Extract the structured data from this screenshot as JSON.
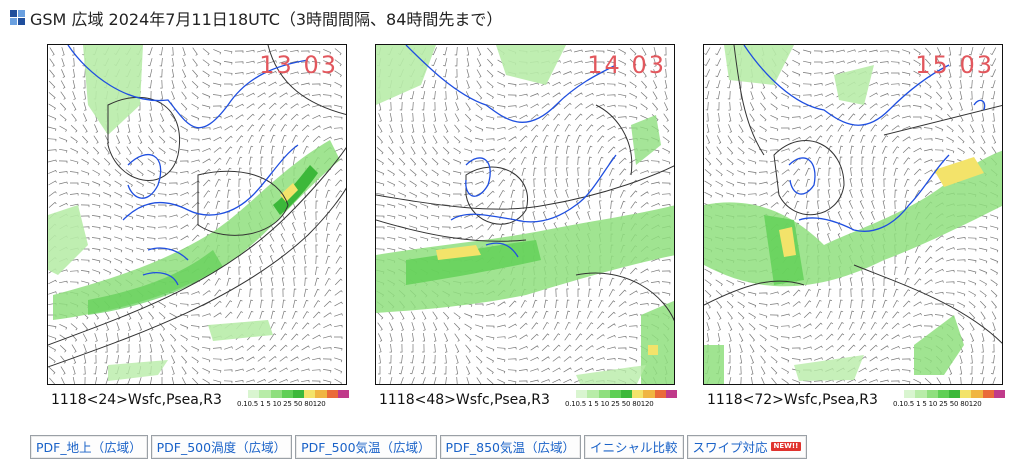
{
  "header": {
    "title": "GSM 広域 2024年7月11日18UTC（3時間間隔、84時間先まで）",
    "logo_colors": [
      "#1f4e9c",
      "#6aa0e0",
      "#6aa0e0",
      "#1f4e9c"
    ]
  },
  "panels": [
    {
      "stamp": "13 03",
      "caption": "1118<24>Wsfc,Psea,R3"
    },
    {
      "stamp": "14 03",
      "caption": "1118<48>Wsfc,Psea,R3"
    },
    {
      "stamp": "15 03",
      "caption": "1118<72>Wsfc,Psea,R3"
    }
  ],
  "legend": {
    "ticks": "0.10.5 1   5  10 25 50 80120",
    "colors": [
      "#ffffff",
      "#d9f5d0",
      "#b8eca8",
      "#8fdf7e",
      "#5fcf55",
      "#3cb83a",
      "#f3e36a",
      "#f0b542",
      "#ea6a3a",
      "#c03a8a"
    ]
  },
  "buttons": [
    {
      "label": "PDF_地上（広域）"
    },
    {
      "label": "PDF_500渦度（広域）"
    },
    {
      "label": "PDF_500気温（広域）"
    },
    {
      "label": "PDF_850気温（広域）"
    },
    {
      "label": "イニシャル比較"
    },
    {
      "label": "スワイプ対応",
      "badge": "NEW!!"
    }
  ],
  "colors": {
    "link": "#1a62c8",
    "coast": "#1f4fe0",
    "isobar": "#333333",
    "stamp": "#e2575d"
  }
}
